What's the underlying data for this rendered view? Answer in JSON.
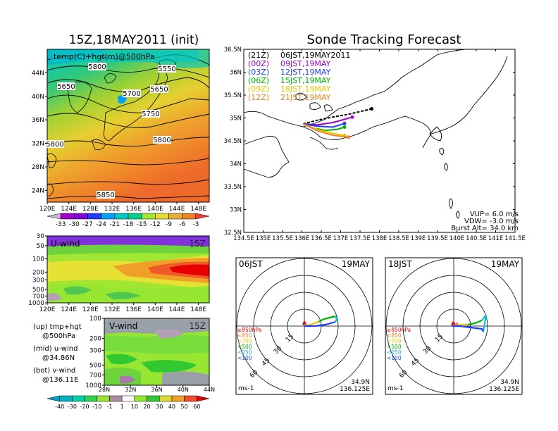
{
  "titles": {
    "left": "15Z,18MAY2011 (init)",
    "right": "Sonde Tracking Forecast"
  },
  "map500": {
    "label": "temp(C)+hgt(m)@500hPa",
    "lat_ticks": [
      "24N",
      "28N",
      "32N",
      "36N",
      "40N",
      "44N"
    ],
    "lon_ticks": [
      "120E",
      "124E",
      "128E",
      "132E",
      "136E",
      "140E",
      "144E",
      "148E"
    ],
    "contours": [
      "5550",
      "5650",
      "5700",
      "5650",
      "5750",
      "5800",
      "5800",
      "5800",
      "5850"
    ],
    "colorbar": [
      "-33",
      "-30",
      "-27",
      "-24",
      "-21",
      "-18",
      "-15",
      "-12",
      "-9",
      "-6",
      "-3"
    ],
    "colors": [
      "#a000c8",
      "#8200dc",
      "#1e3cff",
      "#00a0ff",
      "#00c8c8",
      "#00d28c",
      "#a0e632",
      "#e6dc32",
      "#e6af2d",
      "#f08228",
      "#fa3c3c"
    ]
  },
  "uwind": {
    "label": "U-wind",
    "time": "15Z",
    "p_ticks": [
      "30",
      "50",
      "100",
      "200",
      "300",
      "500",
      "700",
      "1000"
    ],
    "lon_ticks": [
      "120E",
      "124E",
      "128E",
      "132E",
      "136E",
      "140E",
      "144E",
      "148E"
    ]
  },
  "vwind": {
    "label": "V-wind",
    "time": "15Z",
    "p_ticks": [
      "100",
      "200",
      "300",
      "500",
      "700",
      "1000"
    ],
    "lat_ticks": [
      "28N",
      "32N",
      "36N",
      "40N",
      "44N"
    ]
  },
  "windbar": {
    "labels": [
      "-40",
      "-30",
      "-20",
      "-10",
      "-1",
      "1",
      "10",
      "20",
      "30",
      "40",
      "50",
      "60"
    ],
    "colors": [
      "#00b4c8",
      "#00d2aa",
      "#32d250",
      "#96e632",
      "#aa8ca0",
      "#ffffff",
      "#96e632",
      "#32c832",
      "#dcdc32",
      "#f0a028",
      "#f05028",
      "#dc0000"
    ]
  },
  "legend_left": [
    {
      "a": "(up) tmp+hgt",
      "b": "@500hPa"
    },
    {
      "a": "(mid) u-wind",
      "b": "@34.86N"
    },
    {
      "a": "(bot) v-wind",
      "b": "@136.11E"
    }
  ],
  "track": {
    "lat_ticks": [
      "32.5N",
      "33N",
      "33.5N",
      "34N",
      "34.5N",
      "35N",
      "35.5N",
      "36N",
      "36.5N"
    ],
    "lon_ticks": [
      "134.5E",
      "135E",
      "135.5E",
      "136E",
      "136.5E",
      "137E",
      "137.5E",
      "138E",
      "138.5E",
      "139E",
      "139.5E",
      "140E",
      "140.5E",
      "141E",
      "141.5E"
    ],
    "launch_legend": [
      {
        "code": "(21Z)",
        "text": "06JST,19MAY2011",
        "color": "#000000"
      },
      {
        "code": "(00Z)",
        "text": "09JST,19MAY",
        "color": "#a000c8"
      },
      {
        "code": "(03Z)",
        "text": "12JST,19MAY",
        "color": "#1e3cff"
      },
      {
        "code": "(06Z)",
        "text": "15JST,19MAY",
        "color": "#00b400"
      },
      {
        "code": "(09Z)",
        "text": "18JST,19MAY",
        "color": "#e6c800"
      },
      {
        "code": "(12Z)",
        "text": "21JST,19MAY",
        "color": "#f08228"
      }
    ],
    "params": [
      "VUP= 6.0 m/s",
      "VDW= -3.0 m/s",
      "Burst Alt= 34.0 km"
    ]
  },
  "hodo1": {
    "title": "06JST",
    "date": "19MAY",
    "rings": [
      "15",
      "30",
      "45",
      "60"
    ],
    "levels": [
      {
        "t": "≥850hPa",
        "c": "#e60000"
      },
      {
        "t": "<850",
        "c": "#f08228"
      },
      {
        "t": "<700",
        "c": "#e6c800"
      },
      {
        "t": "<500",
        "c": "#00b400"
      },
      {
        "t": "<250",
        "c": "#00c8c8"
      },
      {
        "t": "<100",
        "c": "#1e3cff"
      }
    ],
    "unit": "ms-1",
    "lat": "34.9N",
    "lon": "136.125E"
  },
  "hodo2": {
    "title": "18JST",
    "date": "19MAY",
    "rings": [
      "15",
      "30",
      "45",
      "60"
    ],
    "levels": [
      {
        "t": "≥850hPa",
        "c": "#e60000"
      },
      {
        "t": "<850",
        "c": "#f08228"
      },
      {
        "t": "<700",
        "c": "#e6c800"
      },
      {
        "t": "<500",
        "c": "#00b400"
      },
      {
        "t": "<250",
        "c": "#00c8c8"
      },
      {
        "t": "<100",
        "c": "#1e3cff"
      }
    ],
    "unit": "ms-1",
    "lat": "34.9N",
    "lon": "136.125E"
  },
  "chart_data": [
    {
      "type": "heatmap",
      "title": "temp(C)+hgt(m)@500hPa",
      "xlim": [
        120,
        150
      ],
      "ylim": [
        22,
        48
      ],
      "legend_values": [
        -33,
        -30,
        -27,
        -24,
        -21,
        -18,
        -15,
        -12,
        -9,
        -6,
        -3
      ],
      "contour_values": [
        5550,
        5650,
        5700,
        5650,
        5750,
        5800,
        5800,
        5800,
        5850
      ]
    },
    {
      "type": "heatmap",
      "title": "U-wind",
      "xlim": [
        120,
        150
      ],
      "ylim": [
        1000,
        30
      ]
    },
    {
      "type": "heatmap",
      "title": "V-wind",
      "xlim": [
        28,
        44
      ],
      "ylim": [
        1000,
        100
      ]
    },
    {
      "type": "line",
      "title": "Sonde Tracking Forecast",
      "xlim": [
        134.5,
        141.5
      ],
      "ylim": [
        32.5,
        36.5
      ],
      "series": [
        {
          "name": "(21Z) 06JST,19MAY2011",
          "x": [
            136.03,
            136.4,
            136.8,
            137.2,
            137.5,
            137.8
          ],
          "y": [
            34.87,
            34.95,
            35.02,
            35.08,
            35.14,
            35.2
          ]
        },
        {
          "name": "(00Z) 09JST,19MAY",
          "x": [
            136.03,
            136.4,
            136.8,
            137.1,
            137.3
          ],
          "y": [
            34.87,
            34.85,
            34.9,
            34.97,
            35.02
          ]
        },
        {
          "name": "(03Z) 12JST,19MAY",
          "x": [
            136.03,
            136.4,
            136.8,
            137.1
          ],
          "y": [
            34.87,
            34.82,
            34.8,
            34.88
          ]
        },
        {
          "name": "(06Z) 15JST,19MAY",
          "x": [
            136.03,
            136.3,
            136.6,
            136.9,
            137.1
          ],
          "y": [
            34.87,
            34.78,
            34.73,
            34.75,
            34.8
          ]
        },
        {
          "name": "(09Z) 18JST,19MAY",
          "x": [
            136.03,
            136.4,
            136.8,
            137.1
          ],
          "y": [
            34.87,
            34.75,
            34.66,
            34.62
          ]
        },
        {
          "name": "(12Z) 21JST,19MAY",
          "x": [
            136.03,
            136.4,
            136.8,
            137.2
          ],
          "y": [
            34.87,
            34.72,
            34.62,
            34.58
          ]
        }
      ]
    }
  ]
}
